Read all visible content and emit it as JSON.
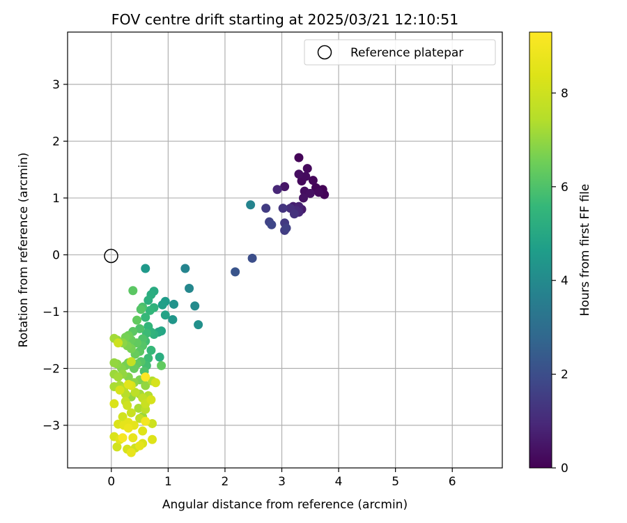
{
  "chart_data": {
    "type": "scatter",
    "title": "FOV centre drift starting at 2025/03/21 12:10:51",
    "xlabel": "Angular distance from reference (arcmin)",
    "ylabel": "Rotation from reference (arcmin)",
    "xlim": [
      -0.77,
      6.88
    ],
    "ylim": [
      -3.75,
      3.92
    ],
    "xticks": [
      0,
      1,
      2,
      3,
      4,
      5,
      6
    ],
    "yticks": [
      -3,
      -2,
      -1,
      0,
      1,
      2,
      3
    ],
    "grid": true,
    "legend": {
      "location": "upper right",
      "entries": [
        "Reference platepar"
      ]
    },
    "reference_point": {
      "x": 0,
      "y": 0,
      "label": "Reference platepar"
    },
    "colorbar": {
      "label": "Hours from first FF file",
      "colormap": "viridis",
      "range": [
        0,
        9.3
      ],
      "ticks": [
        0,
        2,
        4,
        6,
        8
      ]
    },
    "series": [
      {
        "points": [
          {
            "x": 3.3,
            "y": 1.71,
            "c": 0.1
          },
          {
            "x": 3.45,
            "y": 1.52,
            "c": 0.2
          },
          {
            "x": 3.3,
            "y": 1.42,
            "c": 0.3
          },
          {
            "x": 3.35,
            "y": 1.3,
            "c": 0.2
          },
          {
            "x": 3.55,
            "y": 1.31,
            "c": 0.15
          },
          {
            "x": 3.42,
            "y": 1.38,
            "c": 0.25
          },
          {
            "x": 3.6,
            "y": 1.18,
            "c": 0.1
          },
          {
            "x": 3.72,
            "y": 1.15,
            "c": 0.05
          },
          {
            "x": 3.4,
            "y": 1.12,
            "c": 0.3
          },
          {
            "x": 3.5,
            "y": 1.08,
            "c": 0.35
          },
          {
            "x": 3.65,
            "y": 1.1,
            "c": 0.2
          },
          {
            "x": 3.75,
            "y": 1.06,
            "c": 0.1
          },
          {
            "x": 3.38,
            "y": 1.0,
            "c": 0.4
          },
          {
            "x": 3.05,
            "y": 1.2,
            "c": 0.5
          },
          {
            "x": 2.92,
            "y": 1.15,
            "c": 0.9
          },
          {
            "x": 3.2,
            "y": 0.85,
            "c": 0.7
          },
          {
            "x": 3.3,
            "y": 0.85,
            "c": 0.8
          },
          {
            "x": 3.35,
            "y": 0.8,
            "c": 0.6
          },
          {
            "x": 3.25,
            "y": 0.78,
            "c": 1.0
          },
          {
            "x": 3.15,
            "y": 0.82,
            "c": 1.1
          },
          {
            "x": 3.3,
            "y": 0.75,
            "c": 0.9
          },
          {
            "x": 3.22,
            "y": 0.72,
            "c": 1.2
          },
          {
            "x": 3.02,
            "y": 0.82,
            "c": 1.3
          },
          {
            "x": 2.72,
            "y": 0.82,
            "c": 1.5
          },
          {
            "x": 2.45,
            "y": 0.88,
            "c": 3.8
          },
          {
            "x": 3.05,
            "y": 0.56,
            "c": 1.4
          },
          {
            "x": 3.08,
            "y": 0.47,
            "c": 1.6
          },
          {
            "x": 3.05,
            "y": 0.43,
            "c": 1.5
          },
          {
            "x": 2.78,
            "y": 0.58,
            "c": 1.7
          },
          {
            "x": 2.82,
            "y": 0.53,
            "c": 1.8
          },
          {
            "x": 2.48,
            "y": -0.06,
            "c": 2.0
          },
          {
            "x": 2.18,
            "y": -0.3,
            "c": 2.2
          },
          {
            "x": 1.3,
            "y": -0.24,
            "c": 3.8
          },
          {
            "x": 0.6,
            "y": -0.24,
            "c": 4.5
          },
          {
            "x": 1.37,
            "y": -0.59,
            "c": 3.9
          },
          {
            "x": 1.47,
            "y": -0.9,
            "c": 4.0
          },
          {
            "x": 1.53,
            "y": -1.23,
            "c": 4.2
          },
          {
            "x": 1.1,
            "y": -0.87,
            "c": 4.3
          },
          {
            "x": 1.08,
            "y": -1.14,
            "c": 4.4
          },
          {
            "x": 0.95,
            "y": -0.82,
            "c": 4.6
          },
          {
            "x": 0.9,
            "y": -0.88,
            "c": 4.7
          },
          {
            "x": 0.95,
            "y": -1.06,
            "c": 4.8
          },
          {
            "x": 0.88,
            "y": -1.34,
            "c": 4.9
          },
          {
            "x": 0.83,
            "y": -1.36,
            "c": 5.0
          },
          {
            "x": 0.75,
            "y": -0.64,
            "c": 5.1
          },
          {
            "x": 0.7,
            "y": -0.7,
            "c": 5.2
          },
          {
            "x": 0.65,
            "y": -0.8,
            "c": 5.3
          },
          {
            "x": 0.75,
            "y": -0.93,
            "c": 5.4
          },
          {
            "x": 0.68,
            "y": -0.98,
            "c": 5.5
          },
          {
            "x": 0.55,
            "y": -0.92,
            "c": 5.9
          },
          {
            "x": 0.52,
            "y": -0.96,
            "c": 6.1
          },
          {
            "x": 0.38,
            "y": -0.63,
            "c": 6.2
          },
          {
            "x": 0.6,
            "y": -1.1,
            "c": 5.6
          },
          {
            "x": 0.65,
            "y": -1.26,
            "c": 5.5
          },
          {
            "x": 0.7,
            "y": -1.36,
            "c": 5.4
          },
          {
            "x": 0.75,
            "y": -1.4,
            "c": 5.3
          },
          {
            "x": 0.62,
            "y": -1.38,
            "c": 5.7
          },
          {
            "x": 0.6,
            "y": -1.52,
            "c": 5.8
          },
          {
            "x": 0.55,
            "y": -1.48,
            "c": 6.0
          },
          {
            "x": 0.45,
            "y": -1.15,
            "c": 6.3
          },
          {
            "x": 0.5,
            "y": -1.3,
            "c": 6.0
          },
          {
            "x": 0.38,
            "y": -1.35,
            "c": 6.2
          },
          {
            "x": 0.3,
            "y": -1.42,
            "c": 6.5
          },
          {
            "x": 0.25,
            "y": -1.45,
            "c": 6.6
          },
          {
            "x": 0.35,
            "y": -1.5,
            "c": 6.4
          },
          {
            "x": 0.45,
            "y": -1.55,
            "c": 6.3
          },
          {
            "x": 0.55,
            "y": -1.6,
            "c": 6.1
          },
          {
            "x": 0.5,
            "y": -1.7,
            "c": 6.2
          },
          {
            "x": 0.42,
            "y": -1.75,
            "c": 6.4
          },
          {
            "x": 0.35,
            "y": -1.65,
            "c": 6.6
          },
          {
            "x": 0.28,
            "y": -1.6,
            "c": 6.7
          },
          {
            "x": 0.2,
            "y": -1.55,
            "c": 6.9
          },
          {
            "x": 0.1,
            "y": -1.5,
            "c": 7.0
          },
          {
            "x": 0.05,
            "y": -1.47,
            "c": 7.2
          },
          {
            "x": 0.12,
            "y": -1.55,
            "c": 8.0
          },
          {
            "x": 0.85,
            "y": -1.8,
            "c": 5.2
          },
          {
            "x": 0.88,
            "y": -1.95,
            "c": 6.3
          },
          {
            "x": 0.7,
            "y": -1.68,
            "c": 5.6
          },
          {
            "x": 0.65,
            "y": -1.82,
            "c": 5.7
          },
          {
            "x": 0.62,
            "y": -1.95,
            "c": 5.8
          },
          {
            "x": 0.58,
            "y": -2.05,
            "c": 6.0
          },
          {
            "x": 0.52,
            "y": -1.88,
            "c": 6.1
          },
          {
            "x": 0.45,
            "y": -1.92,
            "c": 6.3
          },
          {
            "x": 0.4,
            "y": -2.0,
            "c": 6.4
          },
          {
            "x": 0.3,
            "y": -1.9,
            "c": 6.5
          },
          {
            "x": 0.25,
            "y": -1.95,
            "c": 6.6
          },
          {
            "x": 0.18,
            "y": -2.0,
            "c": 6.8
          },
          {
            "x": 0.1,
            "y": -1.92,
            "c": 6.9
          },
          {
            "x": 0.05,
            "y": -1.9,
            "c": 7.0
          },
          {
            "x": 0.05,
            "y": -2.1,
            "c": 7.1
          },
          {
            "x": 0.12,
            "y": -2.15,
            "c": 7.2
          },
          {
            "x": 0.2,
            "y": -2.1,
            "c": 7.0
          },
          {
            "x": 0.3,
            "y": -2.15,
            "c": 6.8
          },
          {
            "x": 0.35,
            "y": -1.88,
            "c": 7.8
          },
          {
            "x": 0.4,
            "y": -2.25,
            "c": 6.9
          },
          {
            "x": 0.5,
            "y": -2.2,
            "c": 6.7
          },
          {
            "x": 0.6,
            "y": -2.3,
            "c": 7.0
          },
          {
            "x": 0.72,
            "y": -2.22,
            "c": 7.4
          },
          {
            "x": 0.78,
            "y": -2.25,
            "c": 8.2
          },
          {
            "x": 0.6,
            "y": -2.15,
            "c": 9.3
          },
          {
            "x": 0.05,
            "y": -2.32,
            "c": 7.3
          },
          {
            "x": 0.15,
            "y": -2.3,
            "c": 7.3
          },
          {
            "x": 0.22,
            "y": -2.35,
            "c": 7.5
          },
          {
            "x": 0.15,
            "y": -2.38,
            "c": 8.2
          },
          {
            "x": 0.25,
            "y": -2.45,
            "c": 7.5
          },
          {
            "x": 0.35,
            "y": -2.5,
            "c": 7.0
          },
          {
            "x": 0.42,
            "y": -2.42,
            "c": 7.6
          },
          {
            "x": 0.5,
            "y": -2.45,
            "c": 7.2
          },
          {
            "x": 0.55,
            "y": -2.52,
            "c": 7.7
          },
          {
            "x": 0.65,
            "y": -2.48,
            "c": 7.4
          },
          {
            "x": 0.7,
            "y": -2.55,
            "c": 8.2
          },
          {
            "x": 0.35,
            "y": -2.3,
            "c": 8.3
          },
          {
            "x": 0.3,
            "y": -2.28,
            "c": 8.5
          },
          {
            "x": 0.05,
            "y": -2.62,
            "c": 8.3
          },
          {
            "x": 0.25,
            "y": -2.58,
            "c": 7.8
          },
          {
            "x": 0.28,
            "y": -2.65,
            "c": 8.0
          },
          {
            "x": 0.48,
            "y": -2.7,
            "c": 7.3
          },
          {
            "x": 0.6,
            "y": -2.72,
            "c": 7.6
          },
          {
            "x": 0.6,
            "y": -2.62,
            "c": 7.9
          },
          {
            "x": 0.55,
            "y": -2.85,
            "c": 7.1
          },
          {
            "x": 0.5,
            "y": -2.88,
            "c": 7.7
          },
          {
            "x": 0.35,
            "y": -2.78,
            "c": 7.9
          },
          {
            "x": 0.2,
            "y": -2.85,
            "c": 8.1
          },
          {
            "x": 0.3,
            "y": -2.95,
            "c": 8.6
          },
          {
            "x": 0.12,
            "y": -2.98,
            "c": 8.3
          },
          {
            "x": 0.22,
            "y": -3.0,
            "c": 8.6
          },
          {
            "x": 0.3,
            "y": -3.05,
            "c": 8.8
          },
          {
            "x": 0.4,
            "y": -3.0,
            "c": 8.6
          },
          {
            "x": 0.6,
            "y": -2.93,
            "c": 9.0
          },
          {
            "x": 0.72,
            "y": -2.97,
            "c": 8.0
          },
          {
            "x": 0.55,
            "y": -3.1,
            "c": 8.4
          },
          {
            "x": 0.05,
            "y": -3.2,
            "c": 8.3
          },
          {
            "x": 0.15,
            "y": -3.25,
            "c": 8.5
          },
          {
            "x": 0.2,
            "y": -3.22,
            "c": 9.1
          },
          {
            "x": 0.38,
            "y": -3.22,
            "c": 8.7
          },
          {
            "x": 0.72,
            "y": -3.25,
            "c": 8.4
          },
          {
            "x": 0.55,
            "y": -3.32,
            "c": 8.3
          },
          {
            "x": 0.5,
            "y": -3.36,
            "c": 8.6
          },
          {
            "x": 0.42,
            "y": -3.4,
            "c": 8.0
          },
          {
            "x": 0.28,
            "y": -3.42,
            "c": 8.2
          },
          {
            "x": 0.1,
            "y": -3.38,
            "c": 8.1
          },
          {
            "x": 0.35,
            "y": -3.48,
            "c": 8.7
          }
        ]
      }
    ]
  }
}
